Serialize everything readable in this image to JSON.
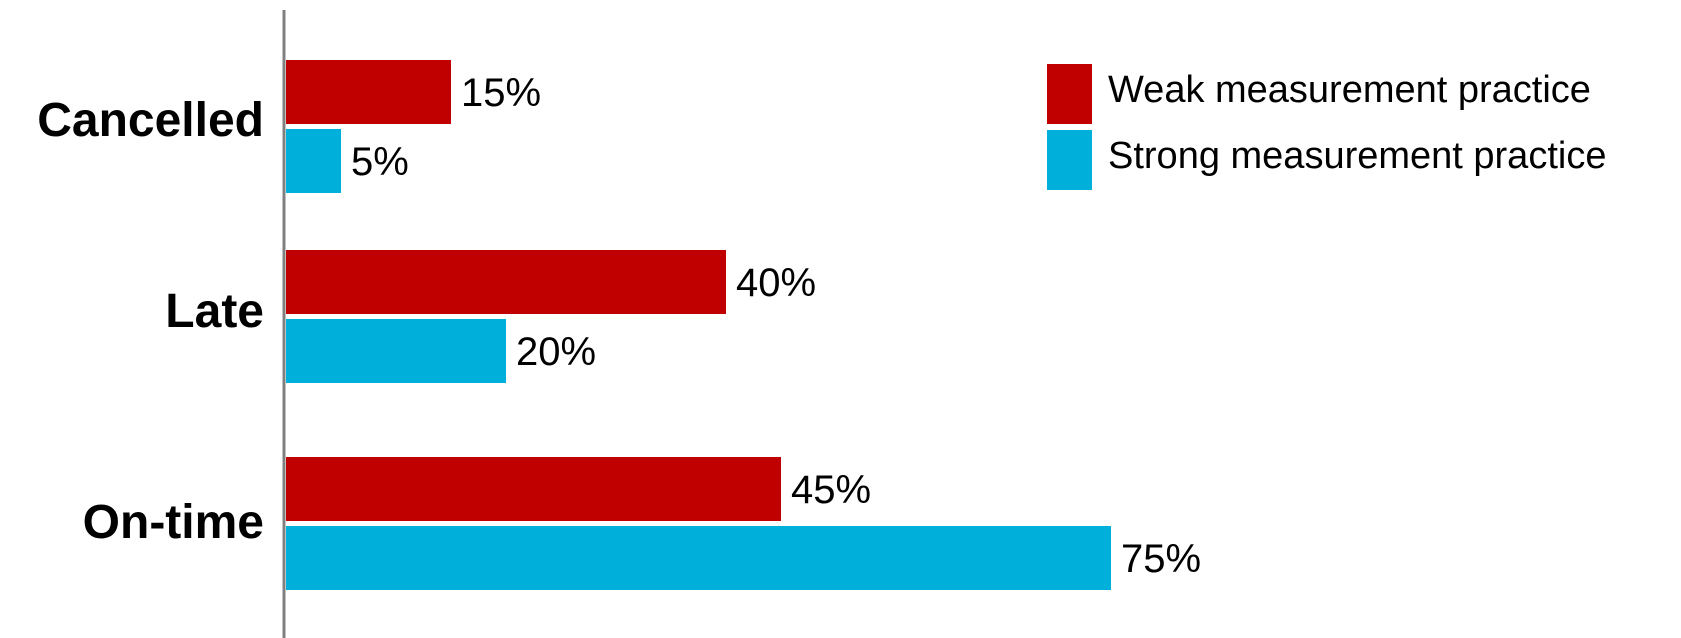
{
  "chart_data": {
    "type": "bar",
    "orientation": "horizontal",
    "categories": [
      "Cancelled",
      "Late",
      "On-time"
    ],
    "series": [
      {
        "name": "Weak measurement practice",
        "color": "#C00000",
        "values": [
          15,
          40,
          45
        ],
        "labels": [
          "15%",
          "40%",
          "45%"
        ]
      },
      {
        "name": "Strong measurement practice",
        "color": "#00B0DB",
        "values": [
          5,
          20,
          75
        ],
        "labels": [
          "5%",
          "20%",
          "75%"
        ]
      }
    ],
    "xlim": [
      0,
      75
    ],
    "grid": false,
    "legend": "top-right",
    "axis_color": "#808080"
  }
}
